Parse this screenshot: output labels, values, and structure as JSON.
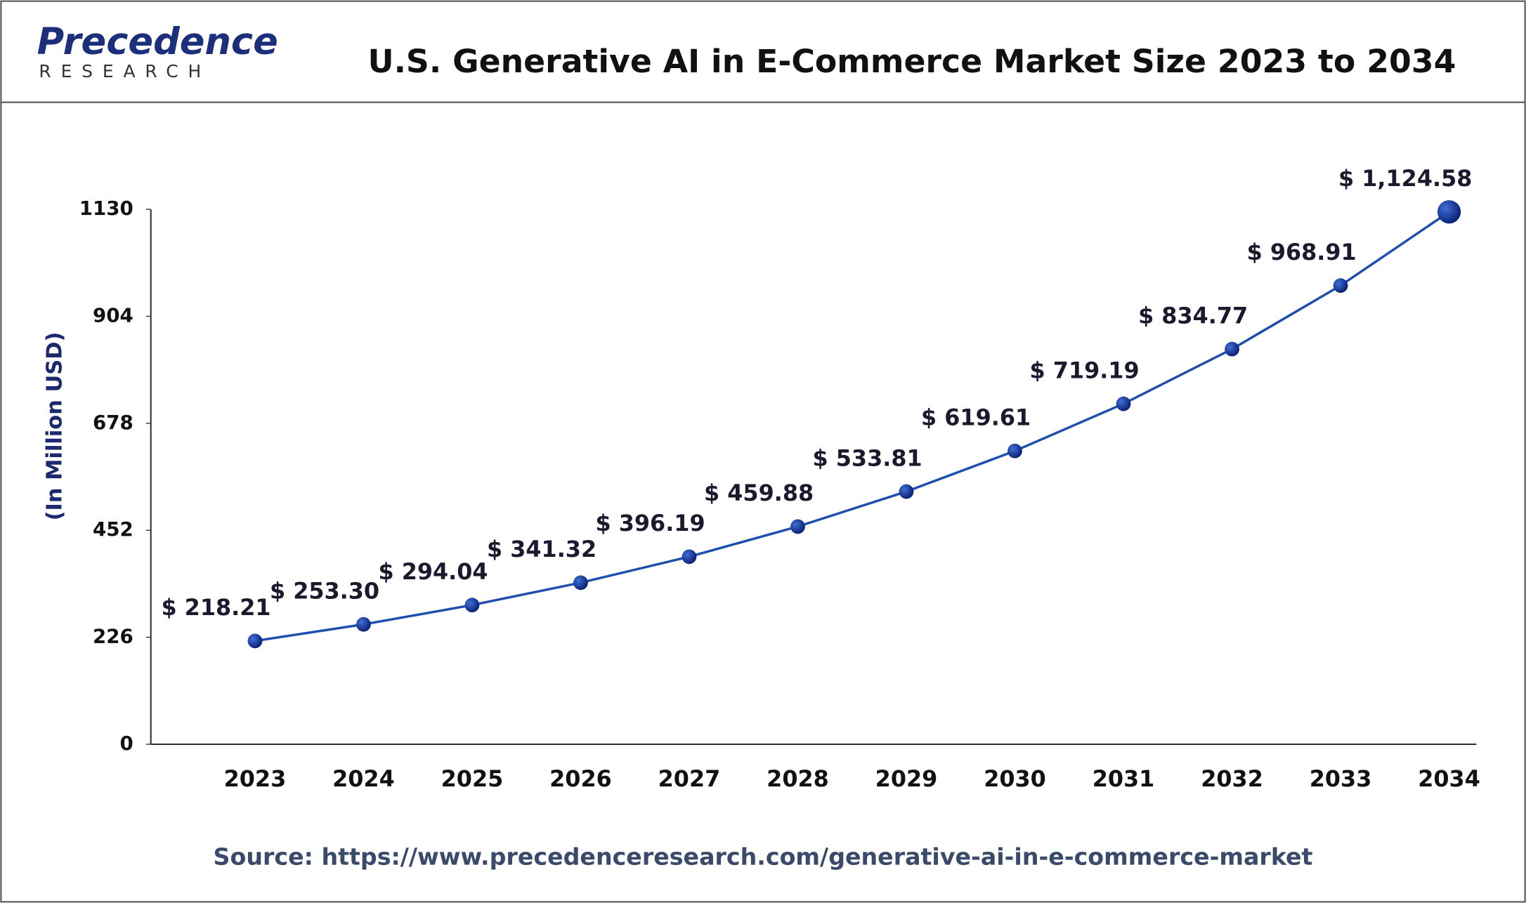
{
  "logo": {
    "name": "Precedence",
    "tagline": "RESEARCH"
  },
  "chart_data": {
    "type": "line",
    "title": "U.S. Generative AI in E-Commerce Market Size 2023 to 2034",
    "y_label": "(In Million USD)",
    "source": "Source: https://www.precedenceresearch.com/generative-ai-in-e-commerce-market",
    "categories": [
      "2023",
      "2024",
      "2025",
      "2026",
      "2027",
      "2028",
      "2029",
      "2030",
      "2031",
      "2032",
      "2033",
      "2034"
    ],
    "series": [
      {
        "name": "U.S. Generative AI in E-Commerce Market Size",
        "color": "#1d4fae",
        "values": [
          218.21,
          253.3,
          294.04,
          341.32,
          396.19,
          459.88,
          533.81,
          619.61,
          719.19,
          834.77,
          968.91,
          1124.58
        ],
        "value_labels": [
          "$ 218.21",
          "$ 253.30",
          "$ 294.04",
          "$ 341.32",
          "$ 396.19",
          "$ 459.88",
          "$ 533.81",
          "$ 619.61",
          "$ 719.19",
          "$ 834.77",
          "$ 968.91",
          "$ 1,124.58"
        ]
      }
    ],
    "ylim": [
      0,
      1130
    ],
    "yticks": [
      0,
      226,
      452,
      678,
      904,
      1130
    ],
    "grid": false
  }
}
